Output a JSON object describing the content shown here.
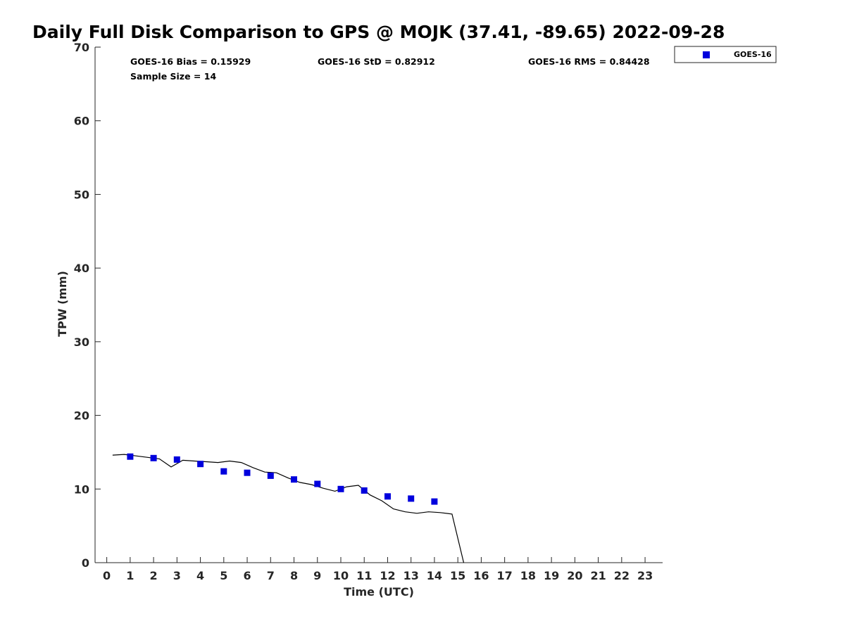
{
  "chart_data": {
    "type": "scatter",
    "title": "Daily Full Disk Comparison to GPS @ MOJK (37.41, -89.65) 2022-09-28",
    "xlabel": "Time (UTC)",
    "ylabel": "TPW (mm)",
    "xlim": [
      -0.5,
      23.75
    ],
    "ylim": [
      0,
      70
    ],
    "x_ticks": [
      0,
      1,
      2,
      3,
      4,
      5,
      6,
      7,
      8,
      9,
      10,
      11,
      12,
      13,
      14,
      15,
      16,
      17,
      18,
      19,
      20,
      21,
      22,
      23
    ],
    "y_ticks": [
      0,
      10,
      20,
      30,
      40,
      50,
      60,
      70
    ],
    "grid": false,
    "legend_position": "outside-top-right",
    "stats": {
      "bias": "GOES-16 Bias = 0.15929",
      "std": "GOES-16 StD = 0.82912",
      "rms": "GOES-16 RMS = 0.84428",
      "sample_size": "Sample Size = 14"
    },
    "series": [
      {
        "name": "GOES-16",
        "kind": "scatter",
        "color": "#0000dd",
        "marker": "square",
        "x": [
          1,
          2,
          3,
          4,
          5,
          6,
          7,
          8,
          9,
          10,
          11,
          12,
          13,
          14
        ],
        "y": [
          14.4,
          14.2,
          14.0,
          13.4,
          12.4,
          12.2,
          11.8,
          11.3,
          10.7,
          10.0,
          9.8,
          9.0,
          8.7,
          8.3
        ]
      },
      {
        "kind": "line",
        "color": "#000000",
        "x": [
          0.25,
          0.75,
          1.25,
          1.75,
          2.25,
          2.75,
          3.25,
          3.75,
          4.25,
          4.75,
          5.25,
          5.75,
          6.25,
          6.75,
          7.25,
          7.75,
          8.25,
          8.75,
          9.25,
          9.75,
          10.25,
          10.75,
          11.25,
          11.75,
          12.25,
          12.75,
          13.25,
          13.75,
          14.25,
          14.75,
          15.25
        ],
        "y": [
          14.6,
          14.7,
          14.5,
          14.3,
          14.1,
          13.0,
          13.9,
          13.8,
          13.7,
          13.6,
          13.8,
          13.6,
          12.9,
          12.3,
          12.2,
          11.5,
          10.9,
          10.6,
          10.1,
          9.7,
          10.3,
          10.5,
          9.2,
          8.4,
          7.3,
          6.9,
          6.7,
          6.9,
          6.8,
          6.6,
          0.0
        ]
      }
    ]
  }
}
